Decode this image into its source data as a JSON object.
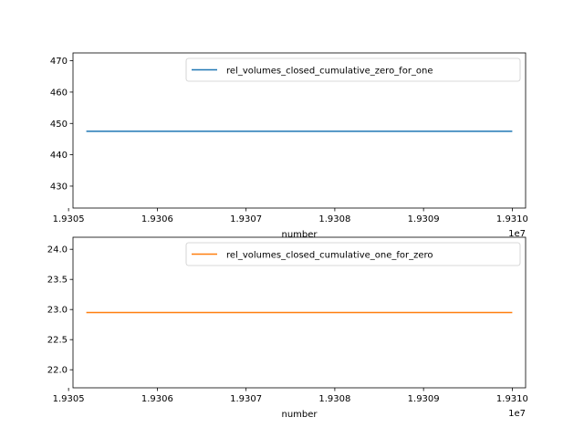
{
  "chart_data": [
    {
      "type": "line",
      "x": [
        19305200,
        19310000
      ],
      "series": [
        {
          "name": "rel_volumes_closed_cumulative_zero_for_one",
          "values": [
            447.5,
            447.5
          ],
          "color": "#1f77b4"
        }
      ],
      "xlabel": "number",
      "ylabel": "",
      "x_offset_label": "1e7",
      "xlim": [
        19305050,
        19310150
      ],
      "ylim": [
        423,
        472.5
      ],
      "xticks": [
        19305000,
        19306000,
        19307000,
        19308000,
        19309000,
        19310000
      ],
      "xtick_labels": [
        "1.9305",
        "1.9306",
        "1.9307",
        "1.9308",
        "1.9309",
        "1.9310"
      ],
      "yticks": [
        430,
        440,
        450,
        460,
        470
      ],
      "ytick_labels": [
        "430",
        "440",
        "450",
        "460",
        "470"
      ],
      "legend": "top-right",
      "grid": false
    },
    {
      "type": "line",
      "x": [
        19305200,
        19310000
      ],
      "series": [
        {
          "name": "rel_volumes_closed_cumulative_one_for_zero",
          "values": [
            22.95,
            22.95
          ],
          "color": "#ff7f0e"
        }
      ],
      "xlabel": "number",
      "ylabel": "",
      "x_offset_label": "1e7",
      "xlim": [
        19305050,
        19310150
      ],
      "ylim": [
        21.7,
        24.2
      ],
      "xticks": [
        19305000,
        19306000,
        19307000,
        19308000,
        19309000,
        19310000
      ],
      "xtick_labels": [
        "1.9305",
        "1.9306",
        "1.9307",
        "1.9308",
        "1.9309",
        "1.9310"
      ],
      "yticks": [
        22.0,
        22.5,
        23.0,
        23.5,
        24.0
      ],
      "ytick_labels": [
        "22.0",
        "22.5",
        "23.0",
        "23.5",
        "24.0"
      ],
      "legend": "top-right",
      "grid": false
    }
  ]
}
